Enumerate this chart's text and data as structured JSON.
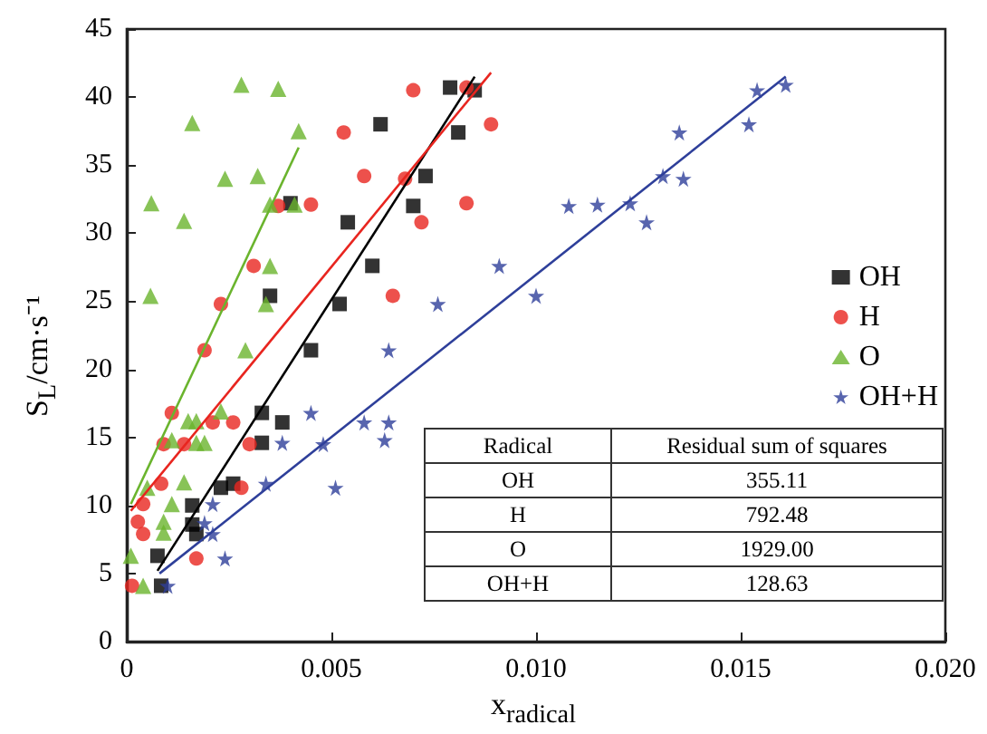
{
  "chart_data": {
    "type": "scatter",
    "xlabel": "x$_{radical}$",
    "ylabel": "S$_{L}$/cm·s⁻¹",
    "xlim": [
      0,
      0.02
    ],
    "ylim": [
      0,
      45
    ],
    "xticks": [
      0,
      0.005,
      {
        "value": 0.01,
        "label": "0.010"
      },
      0.015,
      {
        "value": 0.02,
        "label": "0.020"
      }
    ],
    "yticks": [
      0,
      5,
      10,
      15,
      20,
      25,
      30,
      35,
      40,
      45
    ],
    "grid": false,
    "legend": "right",
    "series": [
      {
        "name": "OH",
        "marker": "square",
        "color": "#000000",
        "x": [
          0.00075,
          0.00084,
          0.0016,
          0.0016,
          0.0017,
          0.0023,
          0.0026,
          0.0033,
          0.0033,
          0.0038,
          0.0045,
          0.004,
          0.0035,
          0.0052,
          0.006,
          0.0054,
          0.0062,
          0.007,
          0.0073,
          0.0079,
          0.0081,
          0.0085
        ],
        "values": [
          6.3,
          4.1,
          10,
          8.6,
          7.9,
          11.3,
          11.6,
          14.6,
          16.8,
          16.1,
          21.4,
          32.2,
          25.4,
          24.8,
          27.6,
          30.8,
          38,
          32,
          34.2,
          40.7,
          37.4,
          40.5
        ]
      },
      {
        "name": "H",
        "marker": "circle",
        "color": "#e8251f",
        "x": [
          0.00013,
          0.0004,
          0.00027,
          0.0004,
          0.00084,
          0.0009,
          0.0011,
          0.0014,
          0.0017,
          0.0021,
          0.0026,
          0.0028,
          0.003,
          0.0019,
          0.0023,
          0.0031,
          0.0037,
          0.0045,
          0.0053,
          0.0065,
          0.0058,
          0.0068,
          0.007,
          0.0072,
          0.0083,
          0.0083,
          0.0089
        ],
        "values": [
          4.1,
          10.1,
          8.8,
          7.9,
          11.6,
          14.5,
          16.8,
          14.5,
          6.1,
          16.1,
          16.1,
          11.3,
          14.5,
          21.4,
          24.8,
          27.6,
          32,
          32.1,
          37.4,
          25.4,
          34.2,
          34,
          40.5,
          30.8,
          32.2,
          40.7,
          38
        ]
      },
      {
        "name": "O",
        "marker": "triangle",
        "color": "#6ab42d",
        "x": [
          0.0001,
          0.0004,
          0.0005,
          0.0009,
          0.0009,
          0.0011,
          0.0011,
          0.0014,
          0.0015,
          0.0017,
          0.0017,
          0.0019,
          0.0023,
          0.0029,
          0.00058,
          0.0006,
          0.0014,
          0.0016,
          0.0024,
          0.0028,
          0.0032,
          0.0035,
          0.0034,
          0.0035,
          0.0041,
          0.0037,
          0.0042
        ],
        "values": [
          6.3,
          4.1,
          11.3,
          8.8,
          8,
          10.1,
          14.8,
          11.7,
          16.2,
          16.2,
          14.6,
          14.6,
          16.9,
          21.4,
          25.4,
          32.2,
          30.9,
          38.1,
          34,
          40.9,
          34.2,
          27.6,
          24.8,
          32.1,
          32.1,
          40.6,
          37.5
        ]
      },
      {
        "name": "OH+H",
        "marker": "star",
        "color": "#2e3f9a",
        "x": [
          0.001,
          0.0019,
          0.0021,
          0.0021,
          0.0024,
          0.0034,
          0.0038,
          0.0045,
          0.0048,
          0.0051,
          0.0058,
          0.0064,
          0.0063,
          0.0064,
          0.0076,
          0.0091,
          0.01,
          0.0108,
          0.0115,
          0.0123,
          0.0127,
          0.0131,
          0.0136,
          0.0135,
          0.0152,
          0.0154,
          0.0161
        ],
        "values": [
          4.1,
          8.7,
          10.1,
          7.9,
          6.1,
          11.6,
          14.6,
          16.8,
          14.5,
          11.3,
          16.1,
          16.1,
          14.8,
          21.4,
          24.8,
          27.6,
          25.4,
          32,
          32.1,
          32.2,
          30.8,
          34.2,
          34,
          37.4,
          38,
          40.5,
          40.9
        ]
      },
      {
        "type": "line",
        "marker": "none",
        "color": "#000000",
        "x": [
          0.00075,
          0.0085
        ],
        "values": [
          5.2,
          41.5
        ]
      },
      {
        "type": "line",
        "marker": "none",
        "color": "#e8251f",
        "x": [
          0.0001,
          0.0089
        ],
        "values": [
          9.6,
          41.8
        ]
      },
      {
        "type": "line",
        "marker": "none",
        "color": "#6ab42d",
        "x": [
          0.0001,
          0.0042
        ],
        "values": [
          10.1,
          36.3
        ]
      },
      {
        "type": "line",
        "marker": "none",
        "color": "#2e3f9a",
        "x": [
          0.0008,
          0.0161
        ],
        "values": [
          5,
          41.5
        ]
      }
    ],
    "annotations": [
      "Radical",
      "Residual sum of squares",
      "OH",
      "355.11",
      "H",
      "792.48",
      "O",
      "1929.00",
      "OH+H",
      "128.63"
    ]
  }
}
